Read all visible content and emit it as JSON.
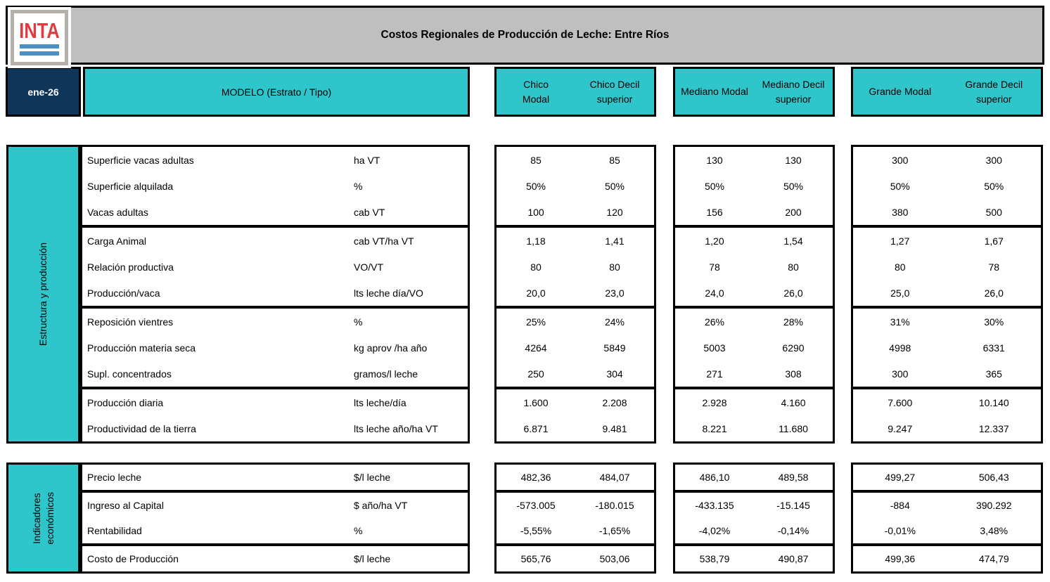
{
  "header": {
    "title": "Costos Regionales de Producción de Leche: Entre Ríos",
    "date": "ene-26",
    "model_label": "MODELO (Estrato / Tipo)",
    "logo_text": "INTA",
    "columns": [
      {
        "modal": "Chico\nModal",
        "decil": "Chico Decil\nsuperior"
      },
      {
        "modal": "Mediano Modal",
        "decil": "Mediano Decil\nsuperior"
      },
      {
        "modal": "Grande Modal",
        "decil": "Grande Decil\nsuperior"
      }
    ]
  },
  "colors": {
    "teal": "#2FC6CB",
    "navy": "#0F3559",
    "header_gray": "#BFBFBF",
    "logo_red": "#E23B3F",
    "logo_blue": "#4B8FC4",
    "border_black": "#000000"
  },
  "sections": [
    {
      "name": "Estructura y producción",
      "groups": [
        {
          "rows": [
            {
              "label": "Superficie vacas adultas",
              "unit": "ha VT",
              "values": [
                "85",
                "85",
                "130",
                "130",
                "300",
                "300"
              ]
            },
            {
              "label": "Superficie alquilada",
              "unit": "%",
              "values": [
                "50%",
                "50%",
                "50%",
                "50%",
                "50%",
                "50%"
              ]
            },
            {
              "label": "Vacas adultas",
              "unit": "cab VT",
              "values": [
                "100",
                "120",
                "156",
                "200",
                "380",
                "500"
              ]
            }
          ]
        },
        {
          "rows": [
            {
              "label": "Carga Animal",
              "unit": "cab VT/ha VT",
              "values": [
                "1,18",
                "1,41",
                "1,20",
                "1,54",
                "1,27",
                "1,67"
              ]
            },
            {
              "label": "Relación productiva",
              "unit": "VO/VT",
              "values": [
                "80",
                "80",
                "78",
                "80",
                "80",
                "78"
              ]
            },
            {
              "label": "Producción/vaca",
              "unit": "lts leche día/VO",
              "values": [
                "20,0",
                "23,0",
                "24,0",
                "26,0",
                "25,0",
                "26,0"
              ]
            }
          ]
        },
        {
          "rows": [
            {
              "label": "Reposición vientres",
              "unit": "%",
              "values": [
                "25%",
                "24%",
                "26%",
                "28%",
                "31%",
                "30%"
              ]
            },
            {
              "label": "Producción materia seca",
              "unit": "kg aprov /ha año",
              "values": [
                "4264",
                "5849",
                "5003",
                "6290",
                "4998",
                "6331"
              ]
            },
            {
              "label": "Supl. concentrados",
              "unit": "gramos/l leche",
              "values": [
                "250",
                "304",
                "271",
                "308",
                "300",
                "365"
              ]
            }
          ]
        },
        {
          "rows": [
            {
              "label": "Producción diaria",
              "unit": "lts leche/día",
              "values": [
                "1.600",
                "2.208",
                "2.928",
                "4.160",
                "7.600",
                "10.140"
              ]
            },
            {
              "label": "Productividad de la tierra",
              "unit": "lts leche año/ha VT",
              "values": [
                "6.871",
                "9.481",
                "8.221",
                "11.680",
                "9.247",
                "12.337"
              ]
            }
          ]
        }
      ]
    },
    {
      "name": "Indicadores\neconómicos",
      "groups": [
        {
          "rows": [
            {
              "label": "Precio leche",
              "unit": "$/l leche",
              "values": [
                "482,36",
                "484,07",
                "486,10",
                "489,58",
                "499,27",
                "506,43"
              ]
            }
          ]
        },
        {
          "rows": [
            {
              "label": "Ingreso al Capital",
              "unit": "$ año/ha VT",
              "values": [
                "-573.005",
                "-180.015",
                "-433.135",
                "-15.145",
                "-884",
                "390.292"
              ]
            },
            {
              "label": "Rentabilidad",
              "unit": "%",
              "values": [
                "-5,55%",
                "-1,65%",
                "-4,02%",
                "-0,14%",
                "-0,01%",
                "3,48%"
              ]
            }
          ]
        },
        {
          "rows": [
            {
              "label": "Costo de Producción",
              "unit": "$/l leche",
              "values": [
                "565,76",
                "503,06",
                "538,79",
                "490,87",
                "499,36",
                "474,79"
              ]
            }
          ]
        }
      ]
    }
  ]
}
